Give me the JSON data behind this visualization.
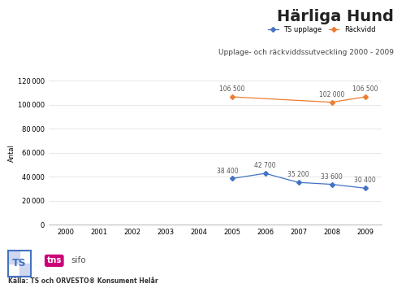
{
  "title": "Härliga Hund",
  "subtitle": "Upplage- och räckviddssutveckling 2000 - 2009",
  "ylabel": "Antal",
  "background_color": "#ffffff",
  "x_years": [
    2000,
    2001,
    2002,
    2003,
    2004,
    2005,
    2006,
    2007,
    2008,
    2009
  ],
  "upplage_years": [
    2005,
    2006,
    2007,
    2008,
    2009
  ],
  "upplage_values": [
    38400,
    42700,
    35200,
    33600,
    30400
  ],
  "upplage_color": "#4472C4",
  "rackvidd_years": [
    2005,
    2008,
    2009
  ],
  "rackvidd_values": [
    106500,
    102000,
    106500
  ],
  "rackvidd_color": "#ED7D31",
  "ylim": [
    0,
    120000
  ],
  "yticks": [
    0,
    20000,
    40000,
    60000,
    80000,
    100000,
    120000
  ],
  "legend_upplage": "TS upplage",
  "legend_rackvidd": "Räckvidd",
  "source_text": "Källa: TS och ORVESTO® Konsument Helår",
  "upplage_labels": [
    "38 400",
    "42 700",
    "35 200",
    "33 600",
    "30 400"
  ],
  "rackvidd_labels": [
    "106 500",
    "102 000",
    "106 500"
  ],
  "title_fontsize": 14,
  "subtitle_fontsize": 6.5,
  "axis_fontsize": 6,
  "label_fontsize": 5.5,
  "legend_fontsize": 6
}
